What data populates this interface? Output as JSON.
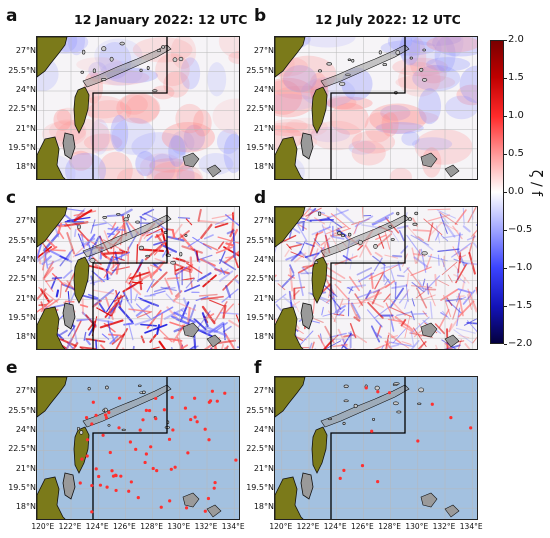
{
  "panels": [
    {
      "id": "a",
      "label": "a",
      "title": "12 January 2022: 12 UTC",
      "field": "vorticity-smooth",
      "seed": 11
    },
    {
      "id": "b",
      "label": "b",
      "title": "12 July 2022: 12 UTC",
      "field": "vorticity-smooth",
      "seed": 23
    },
    {
      "id": "c",
      "label": "c",
      "title": "",
      "field": "vorticity-fine",
      "seed": 37
    },
    {
      "id": "d",
      "label": "d",
      "title": "",
      "field": "vorticity-fine-weak",
      "seed": 41
    },
    {
      "id": "e",
      "label": "e",
      "title": "",
      "field": "eddy-points",
      "seed": 53
    },
    {
      "id": "f",
      "label": "f",
      "title": "",
      "field": "eddy-points-sparse",
      "seed": 67
    }
  ],
  "y_ticks": [
    "27°N",
    "25.5°N",
    "24°N",
    "22.5°N",
    "21°N",
    "19.5°N",
    "18°N"
  ],
  "x_ticks": [
    "120°E",
    "122°E",
    "124°E",
    "126°E",
    "128°E",
    "130°E",
    "132°E",
    "134°E"
  ],
  "colorbar": {
    "label": "ζ / f",
    "ticks": [
      "2.0",
      "1.5",
      "1.0",
      "0.5",
      "0.0",
      "−0.5",
      "−1.0",
      "−1.5",
      "−2.0"
    ],
    "range": [
      -2.0,
      2.0
    ]
  },
  "colors": {
    "land": "#7b7a1a",
    "ocean_mask": "#a3c1e0",
    "island": "#9a9a9a",
    "grid": "#b8b8b8",
    "eddy": "#ff3030"
  }
}
